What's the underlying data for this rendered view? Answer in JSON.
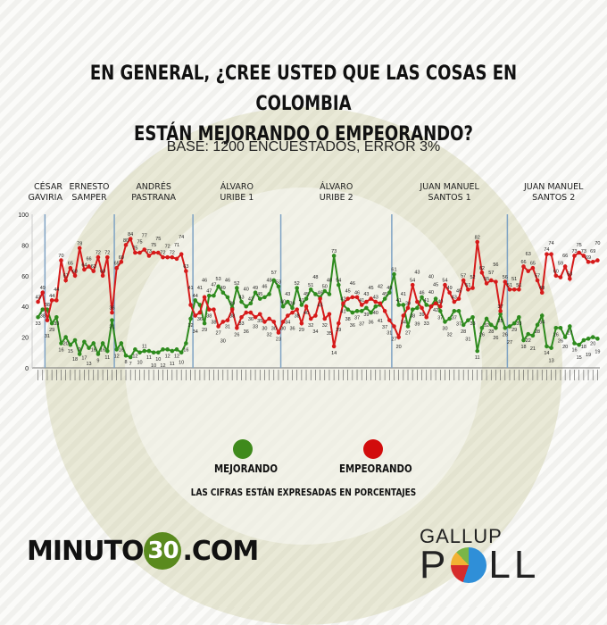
{
  "title_lines": [
    "EN GENERAL, ¿CREE USTED QUE LAS COSAS EN COLOMBIA",
    "ESTÁN MEJORANDO O EMPEORANDO?"
  ],
  "subtitle": "BASE: 1200 ENCUESTADOS, ERROR 3%",
  "note": "LAS CIFRAS ESTÁN EXPRESADAS EN PORCENTAJES",
  "brand_left": {
    "pre": "MINUTO",
    "badge": "30",
    "post": ".COM"
  },
  "brand_right": {
    "line1": "GALLUP",
    "line2_a": "P",
    "line2_b": "LL"
  },
  "chart_data": {
    "type": "line",
    "ylim": [
      0,
      100
    ],
    "yticks": [
      0,
      20,
      40,
      60,
      80,
      100
    ],
    "grid": false,
    "legend_placement": "bottom",
    "periods": [
      {
        "label": [
          "CÉSAR",
          "GAVIRIA"
        ],
        "start": 0
      },
      {
        "label": [
          "ERNESTO",
          "SAMPER"
        ],
        "start": 2
      },
      {
        "label": [
          "ANDRÉS",
          "PASTRANA"
        ],
        "start": 17
      },
      {
        "label": [
          "ÁLVARO",
          "URIBE 1"
        ],
        "start": 34
      },
      {
        "label": [
          "ÁLVARO",
          "URIBE 2"
        ],
        "start": 53
      },
      {
        "label": [
          "JUAN MANUEL",
          "SANTOS 1"
        ],
        "start": 77
      },
      {
        "label": [
          "JUAN MANUEL",
          "SANTOS 2"
        ],
        "start": 102
      }
    ],
    "series": [
      {
        "name": "MEJORANDO",
        "color": "#2e8b1e",
        "values": [
          33,
          38,
          38,
          29,
          33,
          16,
          20,
          15,
          18,
          9,
          17,
          13,
          16,
          9,
          16,
          11,
          31,
          12,
          16,
          8,
          7,
          12,
          10,
          11,
          11,
          10,
          10,
          12,
          12,
          11,
          12,
          10,
          16,
          32,
          44,
          41,
          29,
          47,
          47,
          53,
          49,
          46,
          39,
          52,
          43,
          40,
          42,
          49,
          45,
          46,
          48,
          57,
          53,
          40,
          43,
          39,
          52,
          41,
          45,
          51,
          48,
          46,
          50,
          48,
          73,
          54,
          41,
          38,
          36,
          37,
          37,
          39,
          36,
          40,
          41,
          45,
          49,
          61,
          41,
          41,
          27,
          38,
          39,
          46,
          41,
          40,
          45,
          37,
          30,
          32,
          37,
          37,
          28,
          31,
          33,
          11,
          26,
          32,
          28,
          26,
          35,
          26,
          27,
          29,
          33,
          18,
          22,
          21,
          28,
          34,
          14,
          13,
          26,
          26,
          20,
          27,
          16,
          15,
          18,
          19,
          20,
          19
        ]
      },
      {
        "name": "EMPEORANDO",
        "color": "#d61a1a",
        "values": [
          43,
          49,
          31,
          44,
          44,
          70,
          57,
          65,
          60,
          78,
          64,
          66,
          63,
          72,
          60,
          72,
          36,
          65,
          69,
          80,
          84,
          75,
          75,
          77,
          73,
          75,
          75,
          72,
          72,
          72,
          71,
          74,
          63,
          41,
          34,
          36,
          46,
          38,
          38,
          27,
          30,
          31,
          38,
          26,
          33,
          36,
          36,
          33,
          35,
          30,
          32,
          30,
          23,
          30,
          34,
          36,
          38,
          29,
          40,
          32,
          34,
          45,
          32,
          35,
          14,
          29,
          42,
          45,
          46,
          46,
          41,
          43,
          45,
          43,
          42,
          37,
          31,
          27,
          20,
          34,
          39,
          54,
          43,
          39,
          33,
          40,
          42,
          40,
          54,
          49,
          43,
          45,
          57,
          51,
          52,
          82,
          62,
          55,
          57,
          56,
          37,
          56,
          51,
          51,
          51,
          66,
          63,
          65,
          57,
          49,
          74,
          74,
          60,
          59,
          66,
          58,
          73,
          75,
          73,
          69,
          69,
          70
        ]
      }
    ]
  }
}
